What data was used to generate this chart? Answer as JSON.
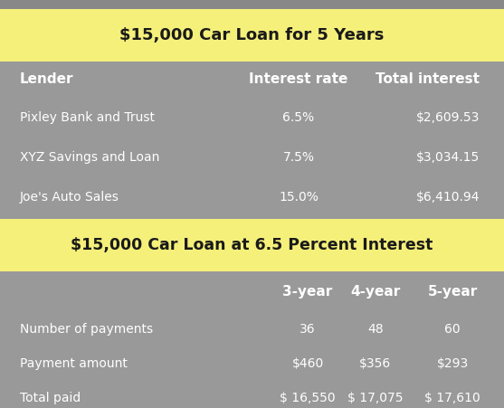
{
  "gray_bg": "#999999",
  "yellow_color": "#F5F07A",
  "white": "#FFFFFF",
  "dark": "#1a1a1a",
  "title1": "$15,000 Car Loan for 5 Years",
  "table1_headers": [
    "Lender",
    "Interest rate",
    "Total interest"
  ],
  "table1_rows": [
    [
      "Pixley Bank and Trust",
      "6.5%",
      "$2,609.53"
    ],
    [
      "XYZ Savings and Loan",
      "7.5%",
      "$3,034.15"
    ],
    [
      "Joe's Auto Sales",
      "15.0%",
      "$6,410.94"
    ]
  ],
  "title2": "$15,000 Car Loan at 6.5 Percent Interest",
  "table2_col_headers": [
    "",
    "3-year",
    "4-year",
    "5-year"
  ],
  "table2_rows": [
    [
      "Number of payments",
      "36",
      "48",
      "60"
    ],
    [
      "Payment amount",
      "$460",
      "$356",
      "$293"
    ],
    [
      "Total paid",
      "$ 16,550",
      "$ 17,075",
      "$ 17,610"
    ]
  ],
  "figsize": [
    5.57,
    4.51
  ],
  "dpi": 100
}
